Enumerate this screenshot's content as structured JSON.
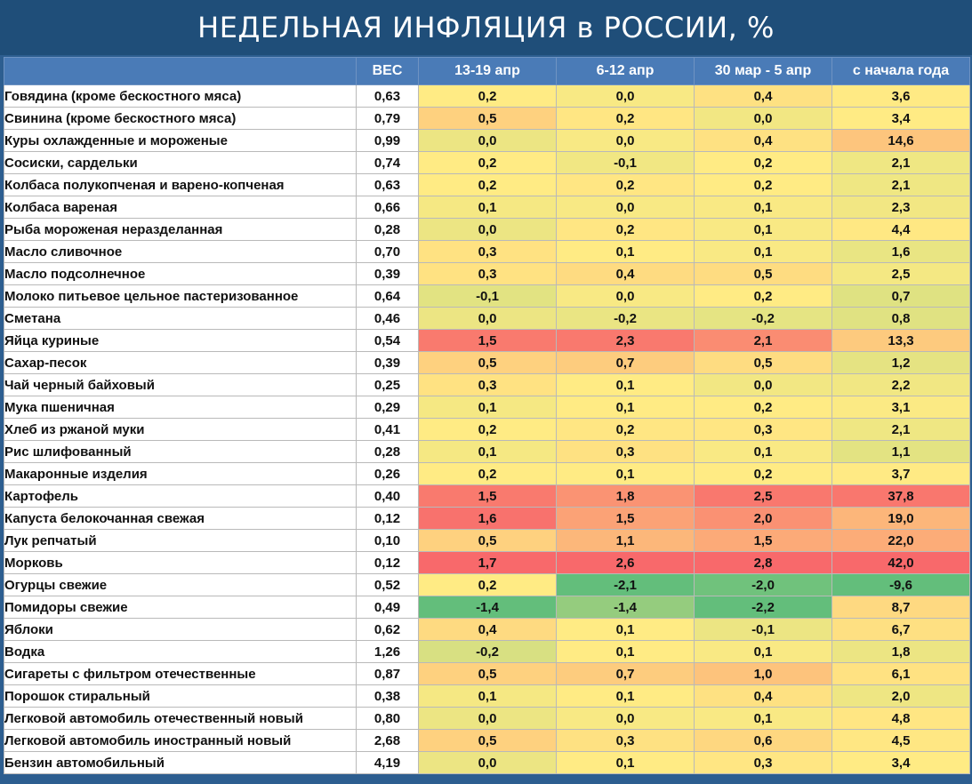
{
  "title": "НЕДЕЛЬНАЯ ИНФЛЯЦИЯ в РОССИИ, %",
  "chart_data": {
    "type": "table",
    "columns": [
      "",
      "ВЕС",
      "13-19 апр",
      "6-12 апр",
      "30 мар - 5 апр",
      "с начала года"
    ],
    "rows": [
      {
        "name": "Говядина (кроме бескостного мяса)",
        "weight": "0,63",
        "values": [
          "0,2",
          "0,0",
          "0,4",
          "3,6"
        ]
      },
      {
        "name": "Свинина (кроме бескостного мяса)",
        "weight": "0,79",
        "values": [
          "0,5",
          "0,2",
          "0,0",
          "3,4"
        ]
      },
      {
        "name": "Куры охлажденные и мороженые",
        "weight": "0,99",
        "values": [
          "0,0",
          "0,0",
          "0,4",
          "14,6"
        ]
      },
      {
        "name": "Сосиски, сардельки",
        "weight": "0,74",
        "values": [
          "0,2",
          "-0,1",
          "0,2",
          "2,1"
        ]
      },
      {
        "name": "Колбаса полукопченая и варено-копченая",
        "weight": "0,63",
        "values": [
          "0,2",
          "0,2",
          "0,2",
          "2,1"
        ]
      },
      {
        "name": "Колбаса вареная",
        "weight": "0,66",
        "values": [
          "0,1",
          "0,0",
          "0,1",
          "2,3"
        ]
      },
      {
        "name": "Рыба мороженая неразделанная",
        "weight": "0,28",
        "values": [
          "0,0",
          "0,2",
          "0,1",
          "4,4"
        ]
      },
      {
        "name": "Масло сливочное",
        "weight": "0,70",
        "values": [
          "0,3",
          "0,1",
          "0,1",
          "1,6"
        ]
      },
      {
        "name": "Масло подсолнечное",
        "weight": "0,39",
        "values": [
          "0,3",
          "0,4",
          "0,5",
          "2,5"
        ]
      },
      {
        "name": "Молоко питьевое цельное пастеризованное",
        "weight": "0,64",
        "values": [
          "-0,1",
          "0,0",
          "0,2",
          "0,7"
        ]
      },
      {
        "name": "Сметана",
        "weight": "0,46",
        "values": [
          "0,0",
          "-0,2",
          "-0,2",
          "0,8"
        ]
      },
      {
        "name": "Яйца куриные",
        "weight": "0,54",
        "values": [
          "1,5",
          "2,3",
          "2,1",
          "13,3"
        ]
      },
      {
        "name": "Сахар-песок",
        "weight": "0,39",
        "values": [
          "0,5",
          "0,7",
          "0,5",
          "1,2"
        ]
      },
      {
        "name": "Чай черный байховый",
        "weight": "0,25",
        "values": [
          "0,3",
          "0,1",
          "0,0",
          "2,2"
        ]
      },
      {
        "name": "Мука пшеничная",
        "weight": "0,29",
        "values": [
          "0,1",
          "0,1",
          "0,2",
          "3,1"
        ]
      },
      {
        "name": "Хлеб из ржаной муки",
        "weight": "0,41",
        "values": [
          "0,2",
          "0,2",
          "0,3",
          "2,1"
        ]
      },
      {
        "name": "Рис шлифованный",
        "weight": "0,28",
        "values": [
          "0,1",
          "0,3",
          "0,1",
          "1,1"
        ]
      },
      {
        "name": "Макаронные изделия",
        "weight": "0,26",
        "values": [
          "0,2",
          "0,1",
          "0,2",
          "3,7"
        ]
      },
      {
        "name": "Картофель",
        "weight": "0,40",
        "values": [
          "1,5",
          "1,8",
          "2,5",
          "37,8"
        ]
      },
      {
        "name": "Капуста белокочанная свежая",
        "weight": "0,12",
        "values": [
          "1,6",
          "1,5",
          "2,0",
          "19,0"
        ]
      },
      {
        "name": "Лук репчатый",
        "weight": "0,10",
        "values": [
          "0,5",
          "1,1",
          "1,5",
          "22,0"
        ]
      },
      {
        "name": "Морковь",
        "weight": "0,12",
        "values": [
          "1,7",
          "2,6",
          "2,8",
          "42,0"
        ]
      },
      {
        "name": "Огурцы свежие",
        "weight": "0,52",
        "values": [
          "0,2",
          "-2,1",
          "-2,0",
          "-9,6"
        ]
      },
      {
        "name": "Помидоры свежие",
        "weight": "0,49",
        "values": [
          "-1,4",
          "-1,4",
          "-2,2",
          "8,7"
        ]
      },
      {
        "name": "Яблоки",
        "weight": "0,62",
        "values": [
          "0,4",
          "0,1",
          "-0,1",
          "6,7"
        ]
      },
      {
        "name": "Водка",
        "weight": "1,26",
        "values": [
          "-0,2",
          "0,1",
          "0,1",
          "1,8"
        ]
      },
      {
        "name": "Сигареты с фильтром отечественные",
        "weight": "0,87",
        "values": [
          "0,5",
          "0,7",
          "1,0",
          "6,1"
        ]
      },
      {
        "name": "Порошок стиральный",
        "weight": "0,38",
        "values": [
          "0,1",
          "0,1",
          "0,4",
          "2,0"
        ]
      },
      {
        "name": "Легковой автомобиль отечественный новый",
        "weight": "0,80",
        "values": [
          "0,0",
          "0,0",
          "0,1",
          "4,8"
        ]
      },
      {
        "name": "Легковой автомобиль иностранный новый",
        "weight": "2,68",
        "values": [
          "0,5",
          "0,3",
          "0,6",
          "4,5"
        ]
      },
      {
        "name": "Бензин автомобильный",
        "weight": "4,19",
        "values": [
          "0,0",
          "0,1",
          "0,3",
          "3,4"
        ]
      }
    ],
    "color_scale": {
      "low": "#63be7b",
      "mid": "#ffeb84",
      "high": "#f8696b"
    }
  }
}
